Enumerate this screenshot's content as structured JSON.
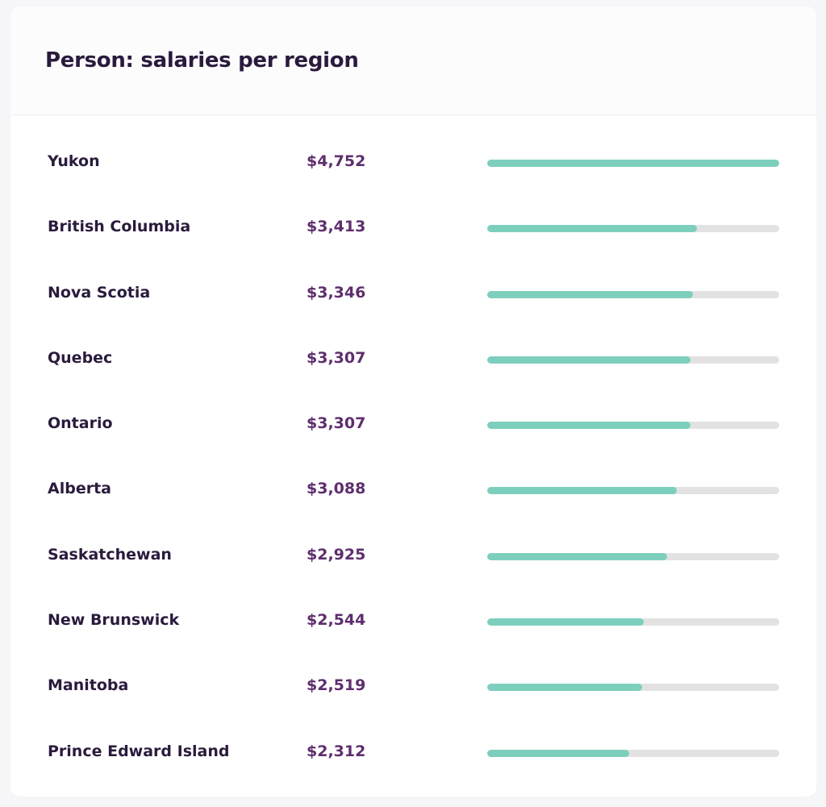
{
  "card": {
    "title": "Person: salaries per region"
  },
  "colors": {
    "bar_fill": "#7dcfbd",
    "bar_track": "#e2e2e2",
    "value_text": "#5e2e6e",
    "label_text": "#2a1b3d"
  },
  "regions": [
    {
      "name": "Yukon",
      "salary": "$4,752",
      "fraction": 1.0
    },
    {
      "name": "British Columbia",
      "salary": "$3,413",
      "fraction": 0.718
    },
    {
      "name": "Nova Scotia",
      "salary": "$3,346",
      "fraction": 0.704
    },
    {
      "name": "Quebec",
      "salary": "$3,307",
      "fraction": 0.696
    },
    {
      "name": "Ontario",
      "salary": "$3,307",
      "fraction": 0.696
    },
    {
      "name": "Alberta",
      "salary": "$3,088",
      "fraction": 0.65
    },
    {
      "name": "Saskatchewan",
      "salary": "$2,925",
      "fraction": 0.616
    },
    {
      "name": "New Brunswick",
      "salary": "$2,544",
      "fraction": 0.535
    },
    {
      "name": "Manitoba",
      "salary": "$2,519",
      "fraction": 0.53
    },
    {
      "name": "Prince Edward Island",
      "salary": "$2,312",
      "fraction": 0.487
    }
  ]
}
